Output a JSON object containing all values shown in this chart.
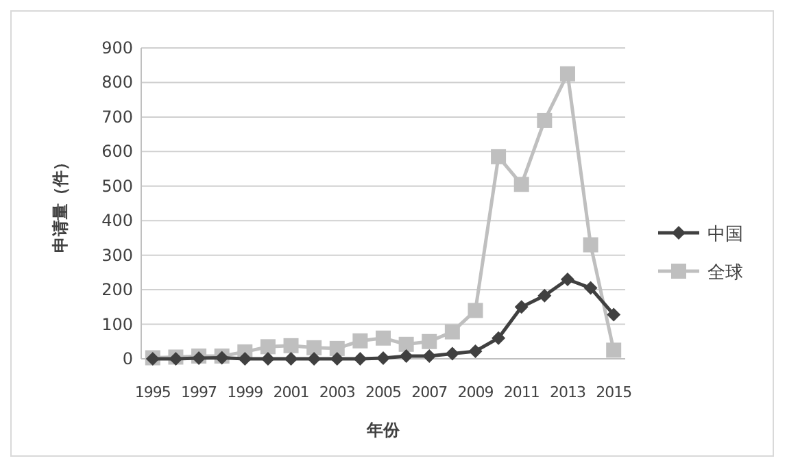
{
  "chart_data": {
    "type": "line",
    "xlabel": "年份",
    "ylabel": "申请量（件）",
    "categories": [
      "1995",
      null,
      "1997",
      null,
      "1999",
      null,
      "2001",
      null,
      "2003",
      null,
      "2005",
      null,
      "2007",
      null,
      "2009",
      null,
      "2011",
      null,
      "2013",
      null,
      "2015"
    ],
    "series": [
      {
        "name": "中国",
        "color": "#404040",
        "marker": "diamond",
        "values": [
          0,
          0,
          2,
          3,
          0,
          0,
          0,
          0,
          0,
          0,
          2,
          8,
          8,
          15,
          22,
          60,
          150,
          183,
          230,
          205,
          128
        ]
      },
      {
        "name": "全球",
        "color": "#bfbfbf",
        "marker": "square",
        "values": [
          3,
          5,
          8,
          8,
          20,
          35,
          38,
          32,
          30,
          52,
          60,
          42,
          50,
          78,
          140,
          585,
          505,
          690,
          825,
          330,
          25
        ]
      }
    ],
    "ylim": [
      0,
      900
    ],
    "yticks": [
      0,
      100,
      200,
      300,
      400,
      500,
      600,
      700,
      800,
      900
    ],
    "grid": "y",
    "legend": "right"
  }
}
